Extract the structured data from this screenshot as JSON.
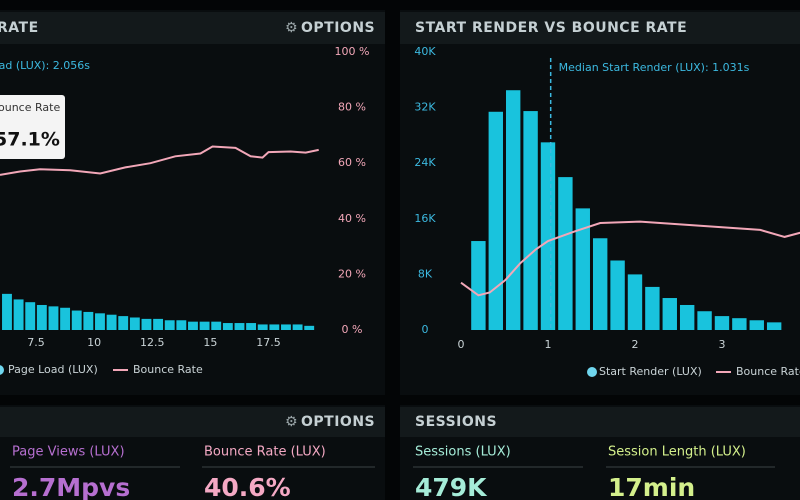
{
  "chart_data": [
    {
      "type": "bar",
      "title": "RATE",
      "options": "OPTIONS",
      "annotation": "oad (LUX): 2.056s",
      "tooltip": {
        "title": "ounce Rate",
        "value": "57.1%"
      },
      "xlim": [
        5.95,
        19.8
      ],
      "xticks": [
        7.5,
        10,
        12.5,
        15,
        17.5
      ],
      "ylim": [
        0,
        100
      ],
      "y2lim": [
        0,
        100
      ],
      "y2ticks": [
        {
          "value": 0,
          "label": "0 %"
        },
        {
          "value": 20,
          "label": "20 %"
        },
        {
          "value": 40,
          "label": "40 %"
        },
        {
          "value": 60,
          "label": "60 %"
        },
        {
          "value": 80,
          "label": "80 %"
        },
        {
          "value": 100,
          "label": "100 %"
        }
      ],
      "x": [
        6.25,
        6.75,
        7.25,
        7.75,
        8.25,
        8.75,
        9.25,
        9.75,
        10.25,
        10.75,
        11.25,
        11.75,
        12.25,
        12.75,
        13.25,
        13.75,
        14.25,
        14.75,
        15.25,
        15.75,
        16.25,
        16.75,
        17.25,
        17.75,
        18.25,
        18.75,
        19.25
      ],
      "grid": false,
      "series": [
        {
          "name": "Page Load (LUX)",
          "color": "#19c3dd",
          "values": [
            13,
            11,
            10,
            9,
            8.5,
            8,
            7,
            6.5,
            6,
            5.5,
            5,
            4.5,
            4,
            4,
            3.5,
            3.5,
            3,
            3,
            3,
            2.5,
            2.5,
            2.5,
            2,
            2,
            2,
            2,
            1.5
          ]
        },
        {
          "name": "Bounce Rate",
          "color": "#f2a7b8",
          "type": "line",
          "axis": "y2",
          "x": [
            5.95,
            6.81,
            7.67,
            8.97,
            10.26,
            11.34,
            12.42,
            13.49,
            14.57,
            15.09,
            16.08,
            16.73,
            17.24,
            17.5,
            18.45,
            19.1,
            19.66
          ],
          "values": [
            55.8,
            57,
            57.8,
            57.5,
            56.3,
            58.5,
            60,
            62.5,
            63.5,
            66,
            65.5,
            62.5,
            62,
            64,
            64.2,
            63.8,
            64.8
          ]
        }
      ]
    },
    {
      "type": "histogram",
      "title": "START RENDER VS BOUNCE RATE",
      "annotation": "Median Start Render (LUX): 1.031s",
      "median": 1.031,
      "xlim": [
        0,
        3.897
      ],
      "xticks": [
        0,
        1,
        2,
        3
      ],
      "ylim": [
        0,
        40000
      ],
      "yticks": [
        0,
        {
          "value": 8000,
          "label": "8K"
        },
        {
          "value": 16000,
          "label": "16K"
        },
        {
          "value": 24000,
          "label": "24K"
        },
        {
          "value": 32000,
          "label": "32K"
        },
        {
          "value": 40000,
          "label": "40K"
        }
      ],
      "y2lim": [
        0,
        100
      ],
      "bins": [
        0.1,
        0.3,
        0.5,
        0.7,
        0.9,
        1.1,
        1.3,
        1.5,
        1.7,
        1.9,
        2.1,
        2.3,
        2.5,
        2.7,
        2.9,
        3.1,
        3.3,
        3.5,
        3.7
      ],
      "grid": false,
      "series": [
        {
          "name": "Start Render (LUX)",
          "color": "#19c3dd",
          "values": [
            12800,
            31400,
            34500,
            31500,
            27000,
            22000,
            17500,
            13200,
            10000,
            8000,
            6200,
            4600,
            3600,
            2700,
            2000,
            1700,
            1400,
            1100
          ]
        },
        {
          "name": "Bounce Rate",
          "color": "#f2a7b8",
          "type": "line",
          "axis": "y2",
          "x": [
            0,
            0.2,
            0.33,
            0.51,
            0.68,
            0.86,
            1,
            1.31,
            1.6,
            2.06,
            2.75,
            3.44,
            3.72,
            3.9
          ],
          "values": [
            17,
            12.5,
            13.5,
            18,
            24,
            29,
            32,
            35.5,
            38.5,
            39,
            37.5,
            36,
            33.5,
            35
          ]
        }
      ]
    }
  ],
  "bottom": {
    "left_header": "OPTIONS",
    "right_header": "SESSIONS",
    "kpis": [
      {
        "label": "Page Views (LUX)",
        "value": "2.7Mpvs",
        "color": "#b66fd0"
      },
      {
        "label": "Bounce Rate (LUX)",
        "value": "40.6%",
        "color": "#f4a9c4"
      },
      {
        "label": "Sessions (LUX)",
        "value": "479K",
        "color": "#a5ecd8"
      },
      {
        "label": "Session Length (LUX)",
        "value": "17min",
        "color": "#d4f08c"
      }
    ]
  }
}
